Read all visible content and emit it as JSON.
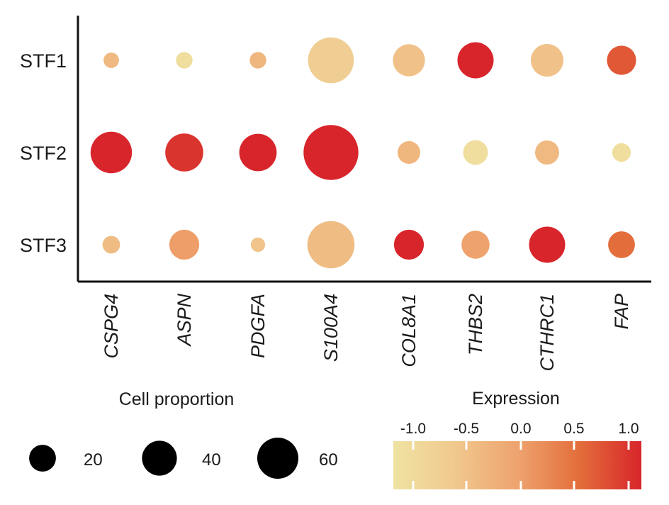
{
  "chart_data": {
    "type": "dot",
    "rows": [
      "STF1",
      "STF2",
      "STF3"
    ],
    "columns": [
      "CSPG4",
      "ASPN",
      "PDGFA",
      "S100A4",
      "COL8A1",
      "THBS2",
      "CTHRC1",
      "FAP"
    ],
    "cell_proportion": [
      [
        7,
        8,
        8,
        61,
        30,
        38,
        31,
        25
      ],
      [
        50,
        42,
        41,
        88,
        15,
        18,
        17,
        10
      ],
      [
        9,
        26,
        6,
        65,
        26,
        23,
        38,
        21
      ]
    ],
    "expression": [
      [
        -0.3,
        -0.9,
        -0.25,
        -0.6,
        -0.4,
        1.0,
        -0.4,
        0.65
      ],
      [
        1.0,
        0.9,
        1.0,
        1.0,
        -0.25,
        -0.9,
        -0.3,
        -0.9
      ],
      [
        -0.35,
        0.05,
        -0.45,
        -0.35,
        1.0,
        0.0,
        1.0,
        0.5
      ]
    ],
    "size_legend": {
      "title": "Cell proportion",
      "entries": [
        {
          "label": "20",
          "value": 20
        },
        {
          "label": "40",
          "value": 40
        },
        {
          "label": "60",
          "value": 60
        }
      ]
    },
    "color_legend": {
      "title": "Expression",
      "range": [
        -1.0,
        1.0
      ],
      "ticks": [
        -1.0,
        -0.5,
        0.0,
        0.5,
        1.0
      ],
      "tick_labels": [
        "-1.0",
        "-0.5",
        "0.0",
        "0.5",
        "1.0"
      ],
      "colors": [
        "#efe3a2",
        "#f0c88e",
        "#eea36e",
        "#e36e3b",
        "#d8252b"
      ]
    }
  }
}
